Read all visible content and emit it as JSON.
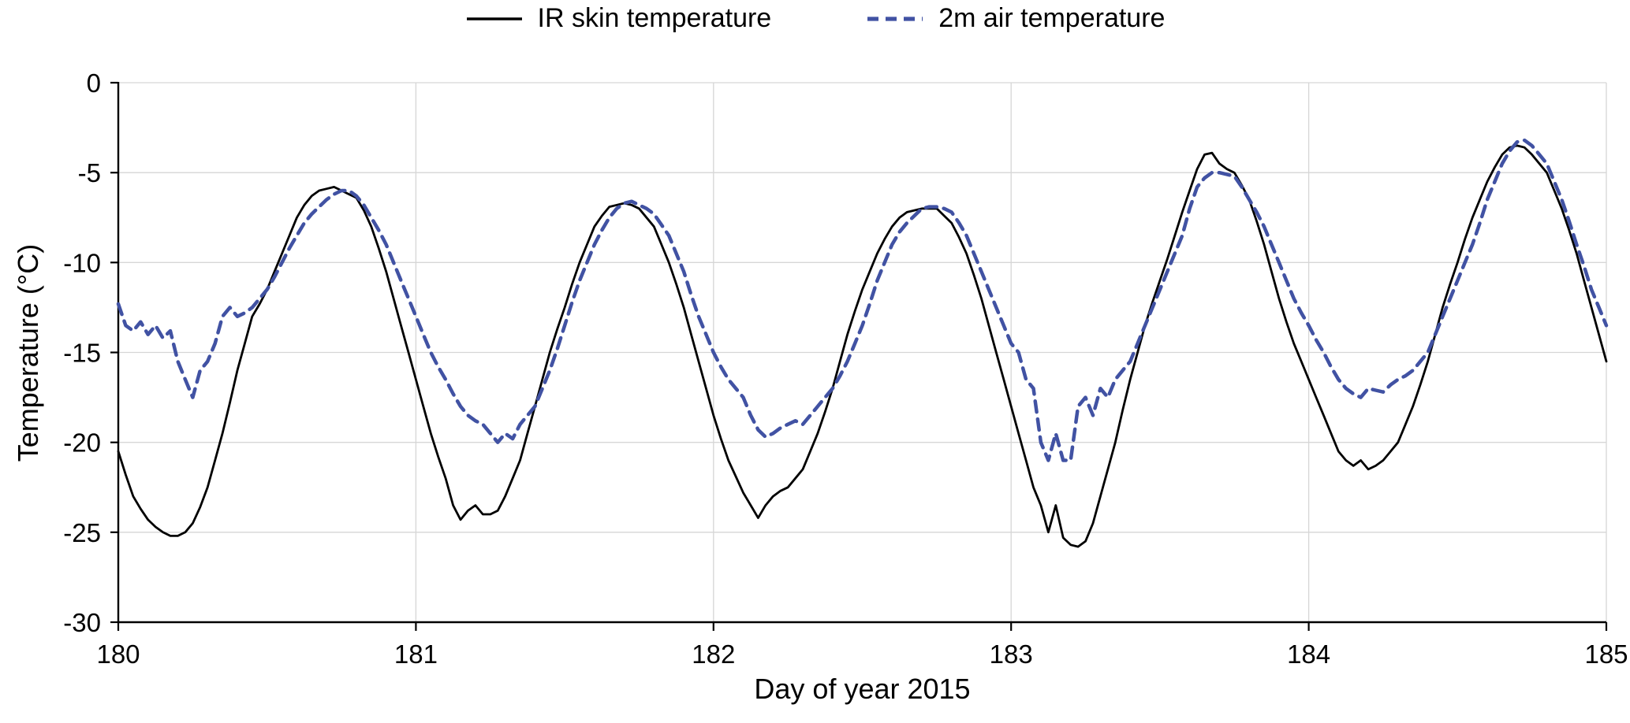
{
  "chart_data": {
    "type": "line",
    "title": "",
    "xlabel": "Day of year 2015",
    "ylabel": "Temperature (°C)",
    "xlim": [
      180,
      185
    ],
    "ylim": [
      -30,
      0
    ],
    "x_ticks": [
      180,
      181,
      182,
      183,
      184,
      185
    ],
    "y_ticks": [
      0,
      -5,
      -10,
      -15,
      -20,
      -25,
      -30
    ],
    "grid": true,
    "legend_position": "top",
    "colors": {
      "grid": "#d6d6d6",
      "axis": "#000000"
    },
    "x": [
      180,
      180.025,
      180.05,
      180.075,
      180.1,
      180.125,
      180.15,
      180.175,
      180.2,
      180.225,
      180.25,
      180.275,
      180.3,
      180.325,
      180.35,
      180.375,
      180.4,
      180.425,
      180.45,
      180.475,
      180.5,
      180.525,
      180.55,
      180.575,
      180.6,
      180.625,
      180.65,
      180.675,
      180.7,
      180.725,
      180.75,
      180.775,
      180.8,
      180.825,
      180.85,
      180.875,
      180.9,
      180.925,
      180.95,
      180.975,
      181,
      181.025,
      181.05,
      181.075,
      181.1,
      181.125,
      181.15,
      181.175,
      181.2,
      181.225,
      181.25,
      181.275,
      181.3,
      181.325,
      181.35,
      181.375,
      181.4,
      181.425,
      181.45,
      181.475,
      181.5,
      181.525,
      181.55,
      181.575,
      181.6,
      181.625,
      181.65,
      181.675,
      181.7,
      181.725,
      181.75,
      181.775,
      181.8,
      181.825,
      181.85,
      181.875,
      181.9,
      181.925,
      181.95,
      181.975,
      182,
      182.025,
      182.05,
      182.075,
      182.1,
      182.125,
      182.15,
      182.175,
      182.2,
      182.225,
      182.25,
      182.275,
      182.3,
      182.325,
      182.35,
      182.375,
      182.4,
      182.425,
      182.45,
      182.475,
      182.5,
      182.525,
      182.55,
      182.575,
      182.6,
      182.625,
      182.65,
      182.675,
      182.7,
      182.725,
      182.75,
      182.775,
      182.8,
      182.825,
      182.85,
      182.875,
      182.9,
      182.925,
      182.95,
      182.975,
      183,
      183.025,
      183.05,
      183.075,
      183.1,
      183.125,
      183.15,
      183.175,
      183.2,
      183.225,
      183.25,
      183.275,
      183.3,
      183.325,
      183.35,
      183.375,
      183.4,
      183.425,
      183.45,
      183.475,
      183.5,
      183.525,
      183.55,
      183.575,
      183.6,
      183.625,
      183.65,
      183.675,
      183.7,
      183.725,
      183.75,
      183.775,
      183.8,
      183.825,
      183.85,
      183.875,
      183.9,
      183.925,
      183.95,
      183.975,
      184,
      184.025,
      184.05,
      184.075,
      184.1,
      184.125,
      184.15,
      184.175,
      184.2,
      184.225,
      184.25,
      184.275,
      184.3,
      184.325,
      184.35,
      184.375,
      184.4,
      184.425,
      184.45,
      184.475,
      184.5,
      184.525,
      184.55,
      184.575,
      184.6,
      184.625,
      184.65,
      184.675,
      184.7,
      184.725,
      184.75,
      184.775,
      184.8,
      184.825,
      184.85,
      184.875,
      184.9,
      184.925,
      184.95,
      184.975,
      185
    ],
    "series": [
      {
        "id": "ir-skin",
        "name": "IR skin temperature",
        "color": "#000000",
        "style": "solid",
        "width": 2.8,
        "values": [
          -20.5,
          -21.8,
          -23,
          -23.7,
          -24.3,
          -24.7,
          -25,
          -25.2,
          -25.2,
          -25,
          -24.5,
          -23.6,
          -22.5,
          -21,
          -19.5,
          -17.8,
          -16,
          -14.5,
          -13,
          -12.3,
          -11.5,
          -10.5,
          -9.5,
          -8.5,
          -7.5,
          -6.8,
          -6.3,
          -6,
          -5.9,
          -5.8,
          -6,
          -6.2,
          -6.4,
          -7.1,
          -8,
          -9.2,
          -10.5,
          -12,
          -13.5,
          -15,
          -16.5,
          -18,
          -19.5,
          -20.8,
          -22,
          -23.5,
          -24.3,
          -23.8,
          -23.5,
          -24,
          -24,
          -23.8,
          -23,
          -22,
          -21,
          -19.5,
          -18,
          -16.5,
          -15,
          -13.7,
          -12.5,
          -11.2,
          -10,
          -9,
          -8,
          -7.4,
          -6.9,
          -6.8,
          -6.7,
          -6.8,
          -7,
          -7.5,
          -8,
          -9,
          -10,
          -11.2,
          -12.5,
          -14,
          -15.5,
          -17,
          -18.5,
          -19.8,
          -21,
          -21.9,
          -22.8,
          -23.5,
          -24.2,
          -23.5,
          -23,
          -22.7,
          -22.5,
          -22,
          -21.5,
          -20.5,
          -19.5,
          -18.3,
          -17,
          -15.5,
          -14,
          -12.7,
          -11.5,
          -10.5,
          -9.5,
          -8.7,
          -8,
          -7.5,
          -7.2,
          -7.1,
          -7,
          -7,
          -7,
          -7.4,
          -7.8,
          -8.6,
          -9.5,
          -10.7,
          -12,
          -13.5,
          -15,
          -16.5,
          -18,
          -19.5,
          -21,
          -22.5,
          -23.5,
          -25,
          -23.5,
          -25.3,
          -25.7,
          -25.8,
          -25.5,
          -24.5,
          -23,
          -21.5,
          -20,
          -18.2,
          -16.5,
          -15,
          -13.5,
          -12.2,
          -11,
          -9.8,
          -8.5,
          -7.2,
          -6,
          -4.8,
          -4,
          -3.9,
          -4.5,
          -4.8,
          -5,
          -5.7,
          -6.5,
          -7.7,
          -9,
          -10.5,
          -12,
          -13.3,
          -14.5,
          -15.5,
          -16.5,
          -17.5,
          -18.5,
          -19.5,
          -20.5,
          -21,
          -21.3,
          -21,
          -21.5,
          -21.3,
          -21,
          -20.5,
          -20,
          -19,
          -18,
          -16.8,
          -15.5,
          -14,
          -12.5,
          -11.2,
          -10,
          -8.7,
          -7.5,
          -6.5,
          -5.5,
          -4.7,
          -4,
          -3.6,
          -3.5,
          -3.6,
          -4,
          -4.5,
          -5,
          -6,
          -7,
          -8.2,
          -9.5,
          -11,
          -12.5,
          -14,
          -15.5
        ]
      },
      {
        "id": "air-2m",
        "name": "2m air temperature",
        "color": "#4152a3",
        "style": "dashed",
        "dash": "14 9",
        "width": 4.5,
        "values": [
          -12.3,
          -13.5,
          -13.8,
          -13.3,
          -14,
          -13.5,
          -14.2,
          -13.8,
          -15.5,
          -16.5,
          -17.5,
          -16,
          -15.5,
          -14.5,
          -13,
          -12.5,
          -13,
          -12.8,
          -12.5,
          -12,
          -11.5,
          -10.8,
          -10,
          -9.2,
          -8.5,
          -7.8,
          -7.3,
          -6.9,
          -6.5,
          -6.2,
          -6,
          -6,
          -6.3,
          -6.8,
          -7.5,
          -8.2,
          -9,
          -10,
          -11,
          -12,
          -13,
          -14,
          -15,
          -15.8,
          -16.5,
          -17.3,
          -18,
          -18.5,
          -18.8,
          -19,
          -19.5,
          -20,
          -19.5,
          -19.8,
          -19,
          -18.5,
          -18,
          -17,
          -16,
          -14.8,
          -13.5,
          -12.2,
          -11,
          -10,
          -9,
          -8.2,
          -7.5,
          -7,
          -6.7,
          -6.6,
          -6.8,
          -7,
          -7.3,
          -7.9,
          -8.5,
          -9.5,
          -10.5,
          -11.8,
          -13,
          -14,
          -15,
          -15.8,
          -16.5,
          -17,
          -17.5,
          -18.5,
          -19.3,
          -19.7,
          -19.5,
          -19.2,
          -19,
          -18.8,
          -19,
          -18.5,
          -18,
          -17.5,
          -17,
          -16.3,
          -15.5,
          -14.5,
          -13.5,
          -12.3,
          -11,
          -10,
          -9,
          -8.3,
          -7.8,
          -7.4,
          -7,
          -6.9,
          -6.9,
          -7,
          -7.2,
          -7.8,
          -8.5,
          -9.5,
          -10.5,
          -11.5,
          -12.5,
          -13.5,
          -14.5,
          -15,
          -16.5,
          -17,
          -20,
          -21,
          -19.5,
          -21,
          -21,
          -18,
          -17.5,
          -18.5,
          -17,
          -17.5,
          -16.5,
          -16,
          -15.5,
          -14.5,
          -13.5,
          -12.5,
          -11.5,
          -10.5,
          -9.5,
          -8.5,
          -7,
          -5.8,
          -5.3,
          -5,
          -5,
          -5.1,
          -5.2,
          -5.8,
          -6.5,
          -7.2,
          -8,
          -9,
          -10,
          -11,
          -12,
          -12.8,
          -13.5,
          -14.3,
          -15,
          -15.8,
          -16.5,
          -17,
          -17.3,
          -17.5,
          -17,
          -17.1,
          -17.2,
          -16.8,
          -16.5,
          -16.3,
          -16,
          -15.5,
          -15,
          -14,
          -13,
          -12,
          -11,
          -10,
          -9,
          -7.8,
          -6.5,
          -5.5,
          -4.5,
          -3.8,
          -3.3,
          -3.2,
          -3.5,
          -4,
          -4.5,
          -5.5,
          -6.5,
          -7.7,
          -9,
          -10.2,
          -11.5,
          -12.5,
          -13.5
        ]
      }
    ]
  }
}
